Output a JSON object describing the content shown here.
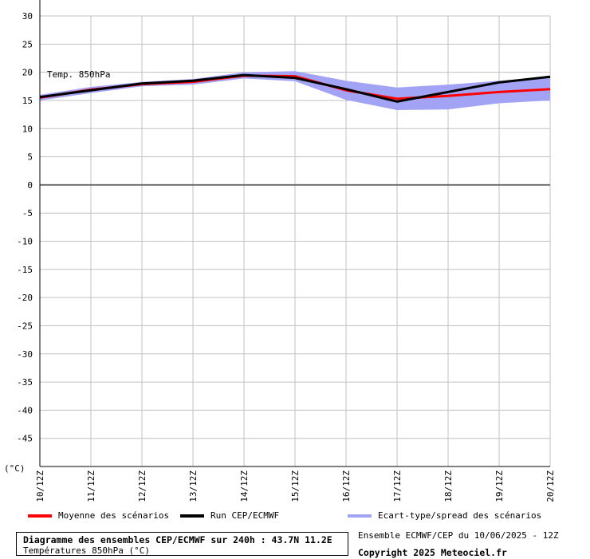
{
  "chart_data": {
    "type": "line",
    "annotation": "Temp. 850hPa",
    "unit_label": "(°C)",
    "x": [
      "10/12Z",
      "11/12Z",
      "12/12Z",
      "13/12Z",
      "14/12Z",
      "15/12Z",
      "16/12Z",
      "17/12Z",
      "18/12Z",
      "19/12Z",
      "20/12Z"
    ],
    "y_ticks": [
      30,
      25,
      20,
      15,
      10,
      5,
      0,
      -5,
      -10,
      -15,
      -20,
      -25,
      -30,
      -35,
      -40,
      -45
    ],
    "ylim": [
      -50,
      30
    ],
    "zero_line": true,
    "grid": true,
    "series": [
      {
        "name": "Moyenne des scénarios",
        "color": "#ff0000",
        "values": [
          15.5,
          16.9,
          17.9,
          18.3,
          19.4,
          19.3,
          16.8,
          15.3,
          15.8,
          16.5,
          17.0
        ]
      },
      {
        "name": "Run CEP/ECMWF",
        "color": "#000000",
        "values": [
          15.6,
          16.8,
          18.0,
          18.5,
          19.5,
          19.0,
          17.0,
          14.8,
          16.5,
          18.2,
          19.2
        ]
      }
    ],
    "spread": {
      "name": "Ecart-type/spread des scénarios",
      "color": "#a3a3f5",
      "upper": [
        16.0,
        17.4,
        18.3,
        18.8,
        20.0,
        20.2,
        18.5,
        17.3,
        17.8,
        18.5,
        19.2
      ],
      "lower": [
        15.0,
        16.3,
        17.5,
        17.8,
        18.9,
        18.4,
        15.1,
        13.3,
        13.4,
        14.5,
        15.0
      ]
    }
  },
  "legend": [
    {
      "label": "Moyenne des scénarios",
      "color": "#ff0000"
    },
    {
      "label": "Run CEP/ECMWF",
      "color": "#000000"
    },
    {
      "label": "Ecart-type/spread des scénarios",
      "color": "#a3a3f5"
    }
  ],
  "footer": {
    "title": "Diagramme des ensembles CEP/ECMWF sur 240h : 43.7N 11.2E",
    "subtitle": "Températures 850hPa (°C)",
    "run_info": "Ensemble ECMWF/CEP du 10/06/2025 - 12Z",
    "copyright": "Copyright 2025 Meteociel.fr"
  }
}
